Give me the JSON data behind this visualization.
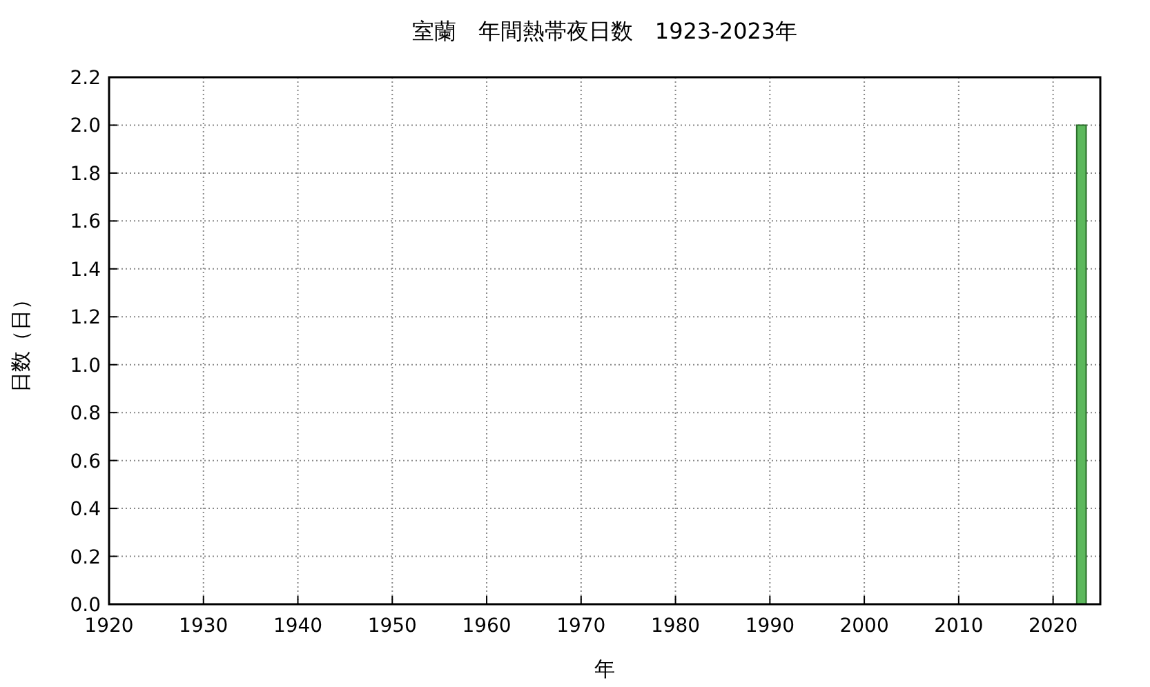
{
  "chart_data": {
    "type": "bar",
    "title": "室蘭　年間熱帯夜日数　1923-2023年",
    "xlabel": "年",
    "ylabel": "日数（日）",
    "x": [
      2023
    ],
    "values": [
      2
    ],
    "color": "#5cb85c",
    "xlim": [
      1920,
      2025
    ],
    "xticks": [
      1920,
      1930,
      1940,
      1950,
      1960,
      1970,
      1980,
      1990,
      2000,
      2010,
      2020
    ],
    "ylim": [
      0,
      2.2
    ],
    "yticks": [
      {
        "value": 0,
        "label": "0.0"
      },
      {
        "value": 0.2,
        "label": "0.2"
      },
      {
        "value": 0.4,
        "label": "0.4"
      },
      {
        "value": 0.6,
        "label": "0.6"
      },
      {
        "value": 0.8,
        "label": "0.8"
      },
      {
        "value": 1,
        "label": "1.0"
      },
      {
        "value": 1.2,
        "label": "1.2"
      },
      {
        "value": 1.4,
        "label": "1.4"
      },
      {
        "value": 1.6,
        "label": "1.6"
      },
      {
        "value": 1.8,
        "label": "1.8"
      },
      {
        "value": 2,
        "label": "2.0"
      },
      {
        "value": 2.2,
        "label": "2.2"
      }
    ],
    "grid": true
  }
}
